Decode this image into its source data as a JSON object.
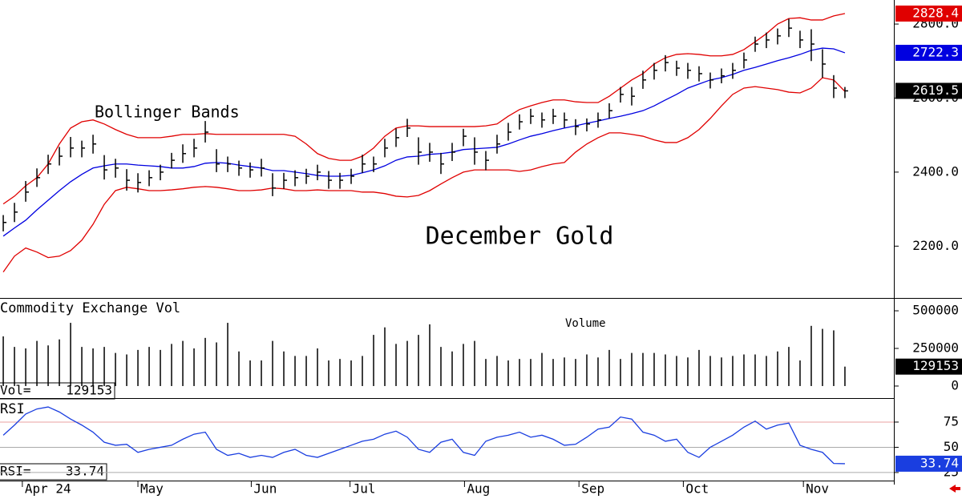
{
  "chart_data": {
    "type": "ohlc",
    "title": "December Gold",
    "annotation": "Bollinger Bands",
    "x": [
      0,
      1,
      2,
      3,
      4,
      5,
      6,
      7,
      8,
      9,
      10,
      11,
      12,
      13,
      14,
      15,
      16,
      17,
      18,
      19,
      20,
      21,
      22,
      23,
      24,
      25,
      26,
      27,
      28,
      29,
      30,
      31,
      32,
      33,
      34,
      35,
      36,
      37,
      38,
      39,
      40,
      41,
      42,
      43,
      44,
      45,
      46,
      47,
      48,
      49,
      50,
      51,
      52,
      53,
      54,
      55,
      56,
      57,
      58,
      59,
      60,
      61,
      62,
      63,
      64,
      65,
      66,
      67,
      68,
      69,
      70,
      71,
      72,
      73,
      74,
      75
    ],
    "xlim": [
      -0.29,
      79.36
    ],
    "xticks": [
      {
        "value": 1.7,
        "label": "Apr 24"
      },
      {
        "value": 12,
        "label": "May"
      },
      {
        "value": 22.1,
        "label": "Jun"
      },
      {
        "value": 30.9,
        "label": "Jul"
      },
      {
        "value": 41.1,
        "label": "Aug"
      },
      {
        "value": 51.3,
        "label": "Sep"
      },
      {
        "value": 60.6,
        "label": "Oct"
      },
      {
        "value": 71.3,
        "label": "Nov"
      }
    ],
    "ylim": [
      2060,
      2865
    ],
    "yticks": [
      {
        "value": 2200,
        "label": "2200.0"
      },
      {
        "value": 2400,
        "label": "2400.0"
      },
      {
        "value": 2600,
        "label": "2600.0"
      },
      {
        "value": 2800,
        "label": "2800.0"
      }
    ],
    "bar_color": "#000000",
    "band_color": "#e00000",
    "middle_color": "#0000e0",
    "high": [
      2284,
      2317,
      2376,
      2410,
      2447,
      2468,
      2495,
      2485,
      2501,
      2446,
      2436,
      2408,
      2397,
      2405,
      2420,
      2452,
      2475,
      2490,
      2538,
      2462,
      2442,
      2431,
      2426,
      2436,
      2397,
      2398,
      2405,
      2409,
      2420,
      2403,
      2398,
      2409,
      2447,
      2442,
      2490,
      2518,
      2544,
      2494,
      2479,
      2452,
      2479,
      2517,
      2494,
      2457,
      2501,
      2533,
      2556,
      2571,
      2561,
      2571,
      2561,
      2543,
      2545,
      2561,
      2586,
      2630,
      2630,
      2674,
      2695,
      2716,
      2701,
      2695,
      2686,
      2669,
      2680,
      2695,
      2723,
      2766,
      2777,
      2788,
      2814,
      2782,
      2786,
      2732,
      2662,
      2630
    ],
    "low": [
      2240,
      2265,
      2320,
      2360,
      2395,
      2418,
      2440,
      2440,
      2450,
      2380,
      2385,
      2350,
      2345,
      2362,
      2378,
      2410,
      2425,
      2440,
      2480,
      2400,
      2400,
      2390,
      2385,
      2388,
      2335,
      2355,
      2362,
      2368,
      2378,
      2355,
      2355,
      2368,
      2398,
      2400,
      2440,
      2468,
      2495,
      2420,
      2428,
      2395,
      2430,
      2470,
      2420,
      2405,
      2450,
      2485,
      2515,
      2530,
      2520,
      2530,
      2520,
      2500,
      2510,
      2520,
      2545,
      2588,
      2580,
      2625,
      2650,
      2672,
      2660,
      2652,
      2645,
      2626,
      2640,
      2652,
      2680,
      2725,
      2735,
      2745,
      2765,
      2735,
      2700,
      2655,
      2600,
      2600
    ],
    "close": [
      2264,
      2292,
      2346,
      2385,
      2422,
      2443,
      2465,
      2465,
      2476,
      2406,
      2411,
      2378,
      2372,
      2385,
      2400,
      2432,
      2450,
      2465,
      2508,
      2422,
      2422,
      2411,
      2406,
      2411,
      2357,
      2378,
      2385,
      2389,
      2400,
      2378,
      2378,
      2389,
      2422,
      2422,
      2465,
      2493,
      2519,
      2454,
      2454,
      2422,
      2454,
      2497,
      2454,
      2432,
      2476,
      2508,
      2536,
      2551,
      2541,
      2551,
      2541,
      2523,
      2530,
      2541,
      2566,
      2610,
      2605,
      2649,
      2675,
      2696,
      2681,
      2675,
      2666,
      2649,
      2660,
      2675,
      2703,
      2746,
      2757,
      2768,
      2789,
      2757,
      2746,
      2692,
      2627,
      2619.5
    ],
    "upper_band": [
      2314,
      2335,
      2363,
      2385,
      2422,
      2476,
      2519,
      2536,
      2541,
      2530,
      2515,
      2502,
      2493,
      2493,
      2493,
      2497,
      2502,
      2502,
      2504,
      2502,
      2502,
      2502,
      2502,
      2502,
      2502,
      2502,
      2497,
      2476,
      2450,
      2437,
      2432,
      2432,
      2443,
      2465,
      2497,
      2519,
      2525,
      2525,
      2523,
      2523,
      2523,
      2523,
      2523,
      2525,
      2530,
      2551,
      2569,
      2579,
      2588,
      2595,
      2595,
      2590,
      2588,
      2588,
      2605,
      2627,
      2649,
      2666,
      2692,
      2709,
      2718,
      2720,
      2718,
      2714,
      2714,
      2718,
      2731,
      2752,
      2774,
      2800,
      2815,
      2817,
      2811,
      2811,
      2822,
      2828.4
    ],
    "middle_band": [
      2227,
      2249,
      2270,
      2298,
      2324,
      2350,
      2374,
      2394,
      2411,
      2417,
      2422,
      2422,
      2419,
      2417,
      2415,
      2411,
      2411,
      2415,
      2424,
      2426,
      2424,
      2419,
      2415,
      2411,
      2404,
      2404,
      2400,
      2396,
      2391,
      2389,
      2389,
      2391,
      2398,
      2406,
      2417,
      2432,
      2441,
      2443,
      2448,
      2450,
      2454,
      2461,
      2463,
      2465,
      2467,
      2476,
      2487,
      2497,
      2504,
      2512,
      2519,
      2525,
      2532,
      2538,
      2545,
      2551,
      2558,
      2566,
      2579,
      2595,
      2610,
      2627,
      2638,
      2649,
      2655,
      2664,
      2675,
      2683,
      2692,
      2701,
      2709,
      2718,
      2729,
      2735,
      2733,
      2722.3
    ],
    "lower_band": [
      2130,
      2173,
      2195,
      2184,
      2169,
      2173,
      2188,
      2216,
      2259,
      2313,
      2350,
      2359,
      2355,
      2350,
      2350,
      2352,
      2355,
      2359,
      2361,
      2359,
      2355,
      2350,
      2350,
      2352,
      2357,
      2355,
      2350,
      2350,
      2352,
      2350,
      2350,
      2350,
      2346,
      2346,
      2342,
      2335,
      2333,
      2337,
      2350,
      2368,
      2385,
      2400,
      2406,
      2406,
      2406,
      2406,
      2402,
      2406,
      2415,
      2422,
      2426,
      2454,
      2476,
      2493,
      2506,
      2506,
      2502,
      2497,
      2487,
      2480,
      2480,
      2493,
      2515,
      2545,
      2579,
      2610,
      2627,
      2631,
      2627,
      2623,
      2616,
      2614,
      2627,
      2655,
      2649,
      2618
    ],
    "volume": {
      "title": "Commodity Exchange Vol",
      "annotation": "Volume",
      "readout_label": "Vol=",
      "color": "#000000",
      "ylim": [
        -80000,
        580000
      ],
      "yticks": [
        0,
        250000,
        500000
      ],
      "values": [
        330000,
        260000,
        250000,
        300000,
        270000,
        310000,
        420000,
        260000,
        250000,
        260000,
        220000,
        210000,
        240000,
        260000,
        240000,
        280000,
        300000,
        250000,
        320000,
        290000,
        420000,
        230000,
        170000,
        170000,
        300000,
        230000,
        200000,
        200000,
        250000,
        170000,
        180000,
        170000,
        200000,
        340000,
        390000,
        280000,
        300000,
        340000,
        410000,
        260000,
        230000,
        280000,
        300000,
        180000,
        200000,
        170000,
        180000,
        180000,
        220000,
        180000,
        190000,
        180000,
        210000,
        190000,
        240000,
        180000,
        220000,
        220000,
        220000,
        210000,
        200000,
        190000,
        240000,
        200000,
        190000,
        200000,
        210000,
        210000,
        200000,
        230000,
        260000,
        170000,
        400000,
        380000,
        370000,
        129153
      ]
    },
    "rsi": {
      "title": "RSI",
      "readout_label": "RSI=",
      "color": "#1a3ee0",
      "ylim": [
        17,
        98
      ],
      "yticks": [
        25,
        50,
        75
      ],
      "values": [
        62,
        72,
        83,
        88,
        90,
        85,
        78,
        72,
        65,
        55,
        52,
        53,
        45,
        48,
        50,
        52,
        58,
        63,
        65,
        48,
        42,
        44,
        40,
        42,
        40,
        45,
        48,
        42,
        40,
        44,
        48,
        52,
        56,
        58,
        63,
        66,
        60,
        48,
        45,
        55,
        58,
        45,
        42,
        56,
        60,
        62,
        65,
        60,
        62,
        58,
        52,
        53,
        60,
        68,
        70,
        80,
        78,
        65,
        62,
        56,
        58,
        45,
        40,
        50,
        56,
        62,
        70,
        76,
        68,
        72,
        74,
        52,
        48,
        45,
        34,
        33.74
      ]
    }
  }
}
